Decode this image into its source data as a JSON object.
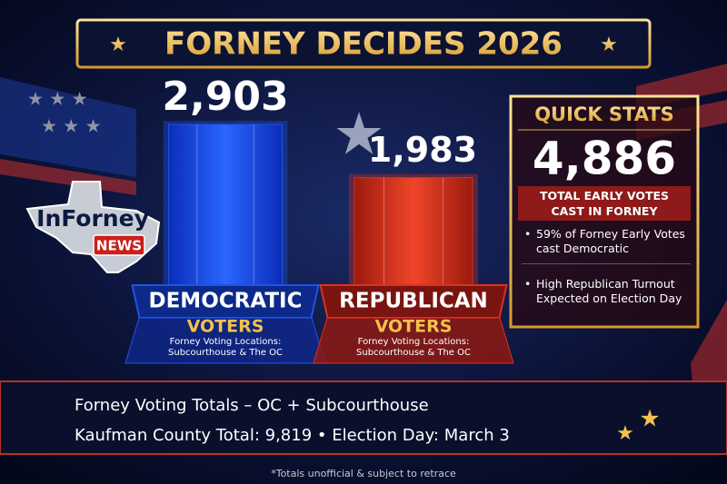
{
  "title": "FORNEY DECIDES 2026",
  "logo": {
    "name": "InForney",
    "tag": "NEWS"
  },
  "chart_data": {
    "type": "bar",
    "categories": [
      "DEMOCRATIC",
      "REPUBLICAN"
    ],
    "category_sublabels": [
      "VOTERS",
      "VOTERS"
    ],
    "category_notes": [
      "Forney Voting Locations: Subcourthouse & The OC",
      "Forney Voting Locations: Subcourthouse & The OC"
    ],
    "values": [
      2903,
      1983
    ],
    "value_labels": [
      "2,903",
      "1,983"
    ],
    "colors": [
      "#1f52e6",
      "#d9321b"
    ]
  },
  "quick_stats": {
    "title": "QUICK STATS",
    "total": "4,886",
    "caption": "TOTAL EARLY VOTES CAST IN FORNEY",
    "bullets": [
      "59% of Forney Early Votes cast Democratic",
      "High Republican Turnout Expected on Election Day"
    ]
  },
  "footer": {
    "line1": "Forney Voting Totals – OC + Subcourthouse",
    "line2": "Kaufman County Total: 9,819 • Election Day: March 3",
    "note": "*Totals unofficial & subject to retrace"
  }
}
